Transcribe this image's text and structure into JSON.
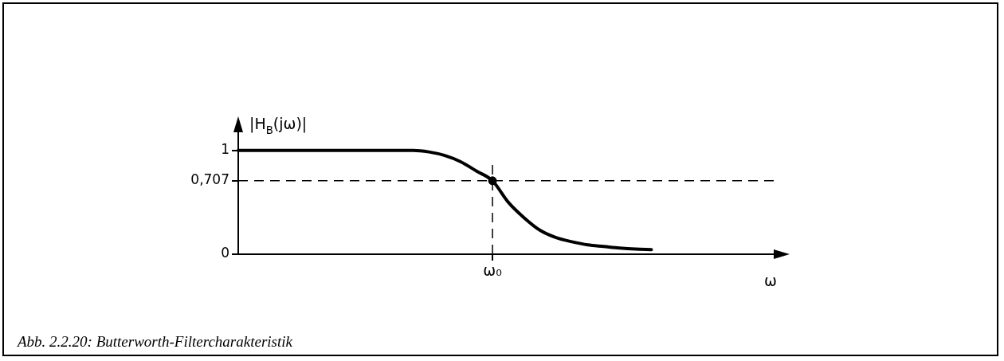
{
  "chart_data": {
    "type": "line",
    "ylabel": "|H$_{B}$(jω)|",
    "xlabel": "ω",
    "categories": [
      null,
      null,
      null,
      null,
      null,
      null,
      null,
      null,
      null,
      null,
      null,
      null,
      null,
      null,
      null,
      null,
      "ω₀",
      null,
      null,
      null,
      null,
      null,
      null,
      null,
      null,
      null,
      null,
      null,
      null,
      null,
      null,
      null,
      null,
      null,
      null
    ],
    "series": [
      {
        "type": "line",
        "color": "#000000",
        "marker": "none",
        "values": [
          1,
          1,
          1,
          1,
          1,
          1,
          1,
          1,
          1,
          1,
          1,
          1,
          0.985,
          0.95,
          0.89,
          0.8,
          0.707,
          0.5,
          0.35,
          0.23,
          0.16,
          0.12,
          0.09,
          0.075,
          0.06,
          0.05,
          0.045,
          null,
          null,
          null,
          null,
          null,
          null,
          null,
          null
        ]
      },
      {
        "type": "scatter",
        "color": "#000000",
        "marker": "circle",
        "x": [
          "ω₀"
        ],
        "values": [
          0.707
        ]
      }
    ],
    "ylim": [
      0,
      1.22
    ],
    "yticks": [
      0,
      {
        "value": 0.707,
        "label": "0,707"
      },
      1
    ],
    "grid": false,
    "legend": false,
    "ref_lines": [
      {
        "axis": "y",
        "value": 0.707,
        "line_style": "dashed",
        "color": "#000000"
      },
      {
        "axis": "x",
        "value": "ω₀",
        "line_style": "dashed",
        "color": "#000000"
      }
    ],
    "annotations": [
      "Abb. 2.2.20: Butterworth-Filtercharakteristik"
    ]
  }
}
